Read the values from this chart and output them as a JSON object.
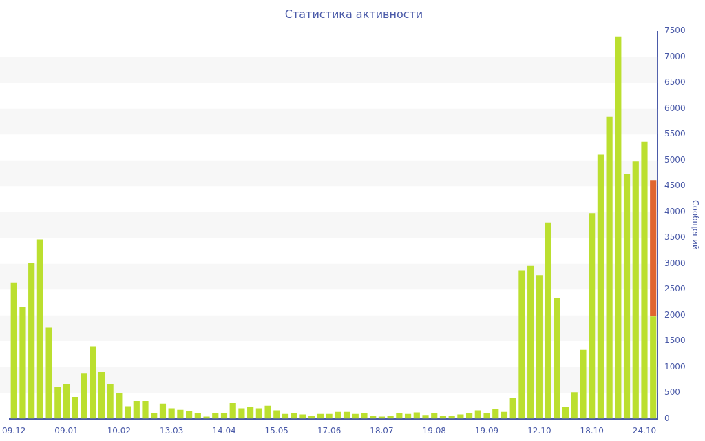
{
  "chart_data": {
    "type": "bar",
    "title": "Статистика активности",
    "ylabel": "Сообщений",
    "categories": [
      "09.12",
      null,
      null,
      null,
      null,
      null,
      "09.01",
      null,
      null,
      null,
      null,
      null,
      "10.02",
      null,
      null,
      null,
      null,
      null,
      "13.03",
      null,
      null,
      null,
      null,
      null,
      "14.04",
      null,
      null,
      null,
      null,
      null,
      "15.05",
      null,
      null,
      null,
      null,
      null,
      "17.06",
      null,
      null,
      null,
      null,
      null,
      "18.07",
      null,
      null,
      null,
      null,
      null,
      "19.08",
      null,
      null,
      null,
      null,
      null,
      "19.09",
      null,
      null,
      null,
      null,
      null,
      "12.10",
      null,
      null,
      null,
      null,
      null,
      "18.10",
      null,
      null,
      null,
      null,
      null,
      "24.10",
      null
    ],
    "stacked": true,
    "series": [
      {
        "color": "#bbdf2f",
        "values": [
          2640,
          2170,
          3020,
          3470,
          1760,
          620,
          670,
          420,
          870,
          1400,
          900,
          670,
          500,
          240,
          340,
          340,
          110,
          290,
          200,
          170,
          140,
          100,
          40,
          110,
          110,
          300,
          200,
          220,
          200,
          250,
          160,
          90,
          110,
          80,
          60,
          90,
          90,
          130,
          130,
          90,
          100,
          50,
          40,
          50,
          100,
          90,
          120,
          70,
          110,
          60,
          60,
          80,
          100,
          160,
          100,
          190,
          130,
          400,
          2870,
          2960,
          2780,
          3800,
          2330,
          220,
          510,
          1330,
          3980,
          5110,
          5840,
          7400,
          4730,
          4980,
          5360,
          1980
        ]
      },
      {
        "color": "#e06530",
        "values": [
          null,
          null,
          null,
          null,
          null,
          null,
          null,
          null,
          null,
          null,
          null,
          null,
          null,
          null,
          null,
          null,
          null,
          null,
          null,
          null,
          null,
          null,
          null,
          null,
          null,
          null,
          null,
          null,
          null,
          null,
          null,
          null,
          null,
          null,
          null,
          null,
          null,
          null,
          null,
          null,
          null,
          null,
          null,
          null,
          null,
          null,
          null,
          null,
          null,
          null,
          null,
          null,
          null,
          null,
          null,
          null,
          null,
          null,
          null,
          null,
          null,
          null,
          null,
          null,
          null,
          null,
          null,
          null,
          null,
          null,
          null,
          null,
          null,
          2640
        ]
      }
    ],
    "ylim": [
      0,
      7500
    ],
    "yticks": [
      0,
      500,
      1000,
      1500,
      2000,
      2500,
      3000,
      3500,
      4000,
      4500,
      5000,
      5500,
      6000,
      6500,
      7000,
      7500
    ],
    "bands": [
      {
        "axis": "y",
        "from": 500,
        "to": 1000,
        "color": "#f7f7f7"
      },
      {
        "axis": "y",
        "from": 1500,
        "to": 2000,
        "color": "#f7f7f7"
      },
      {
        "axis": "y",
        "from": 2500,
        "to": 3000,
        "color": "#f7f7f7"
      },
      {
        "axis": "y",
        "from": 3500,
        "to": 4000,
        "color": "#f7f7f7"
      },
      {
        "axis": "y",
        "from": 4500,
        "to": 5000,
        "color": "#f7f7f7"
      },
      {
        "axis": "y",
        "from": 5500,
        "to": 6000,
        "color": "#f7f7f7"
      },
      {
        "axis": "y",
        "from": 6500,
        "to": 7000,
        "color": "#f7f7f7"
      }
    ],
    "grid": false,
    "legend": false
  }
}
